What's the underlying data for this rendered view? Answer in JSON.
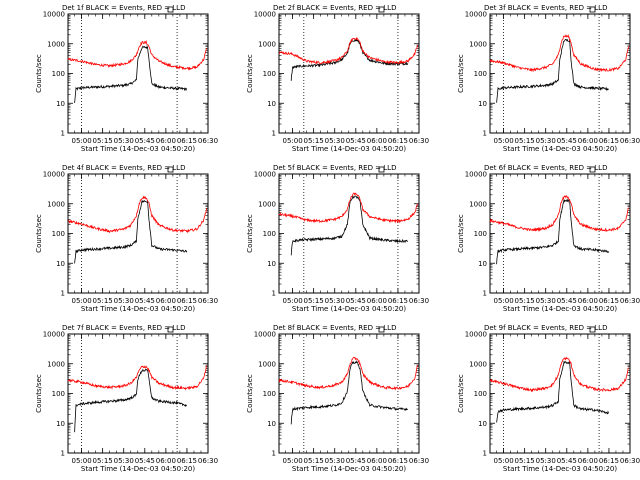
{
  "chart_data": {
    "type": "line",
    "y_scale": "log",
    "ylim": [
      1,
      10000
    ],
    "y_ticks": [
      "1",
      "10",
      "100",
      "1000",
      "10000"
    ],
    "ylabel": "Counts/sec",
    "xlabel": "Start Time (14-Dec-03 04:50:20)",
    "xlim": [
      "04:50:20",
      "06:30:00"
    ],
    "x_ticks": [
      "05:00",
      "05:15",
      "05:30",
      "05:45",
      "06:00",
      "06:15",
      "06:30"
    ],
    "colors": {
      "events": "#000000",
      "lld": "#ff0000"
    },
    "panels": [
      {
        "title": "Det 1f BLACK = Events, RED = LLD",
        "markers": [
          "05:00",
          "06:08"
        ],
        "series": [
          {
            "name": "Events",
            "x": [
              "04:55",
              "04:56",
              "05:00",
              "05:10",
              "05:20",
              "05:30",
              "05:35",
              "05:39",
              "05:40",
              "05:43",
              "05:47",
              "05:48",
              "05:50",
              "05:55",
              "06:05",
              "06:15"
            ],
            "y": [
              10,
              30,
              33,
              35,
              37,
              40,
              45,
              60,
              300,
              750,
              760,
              300,
              45,
              35,
              32,
              30
            ]
          },
          {
            "name": "LLD",
            "x": [
              "04:50:20",
              "05:00",
              "05:10",
              "05:20",
              "05:30",
              "05:35",
              "05:39",
              "05:41",
              "05:43",
              "05:46",
              "05:48",
              "05:50",
              "05:55",
              "06:05",
              "06:15",
              "06:22",
              "06:27",
              "06:29"
            ],
            "y": [
              300,
              260,
              200,
              180,
              210,
              260,
              420,
              800,
              1100,
              1100,
              800,
              420,
              260,
              170,
              150,
              160,
              300,
              700
            ]
          }
        ]
      },
      {
        "title": "Det 2f BLACK = Events, RED = LLD",
        "markers": [
          "05:08",
          "06:15"
        ],
        "series": [
          {
            "name": "Events",
            "x": [
              "04:59",
              "05:00",
              "05:05",
              "05:10",
              "05:20",
              "05:30",
              "05:35",
              "05:39",
              "05:41",
              "05:43",
              "05:46",
              "05:48",
              "05:50",
              "05:55",
              "06:05",
              "06:15",
              "06:22"
            ],
            "y": [
              60,
              160,
              175,
              180,
              190,
              230,
              290,
              480,
              1000,
              1300,
              1300,
              1000,
              480,
              280,
              220,
              210,
              220
            ]
          },
          {
            "name": "LLD",
            "x": [
              "04:50:20",
              "05:00",
              "05:10",
              "05:20",
              "05:30",
              "05:35",
              "05:39",
              "05:41",
              "05:43",
              "05:46",
              "05:48",
              "05:50",
              "05:55",
              "06:05",
              "06:15",
              "06:22",
              "06:27",
              "06:29"
            ],
            "y": [
              520,
              450,
              260,
              230,
              270,
              340,
              560,
              1100,
              1500,
              1500,
              1100,
              560,
              340,
              250,
              230,
              260,
              450,
              900
            ]
          }
        ]
      },
      {
        "title": "Det 3f BLACK = Events, RED = LLD",
        "markers": [
          "05:00",
          "06:08"
        ],
        "series": [
          {
            "name": "Events",
            "x": [
              "04:55",
              "04:56",
              "05:00",
              "05:10",
              "05:20",
              "05:30",
              "05:35",
              "05:39",
              "05:40",
              "05:43",
              "05:47",
              "05:48",
              "05:50",
              "05:55",
              "06:05",
              "06:15"
            ],
            "y": [
              10,
              30,
              33,
              35,
              37,
              40,
              45,
              60,
              300,
              1300,
              1300,
              300,
              45,
              35,
              32,
              30
            ]
          },
          {
            "name": "LLD",
            "x": [
              "04:50:20",
              "05:00",
              "05:10",
              "05:20",
              "05:30",
              "05:35",
              "05:39",
              "05:41",
              "05:43",
              "05:46",
              "05:48",
              "05:50",
              "05:55",
              "06:05",
              "06:15",
              "06:22",
              "06:27",
              "06:29"
            ],
            "y": [
              270,
              230,
              160,
              130,
              160,
              210,
              420,
              1100,
              1800,
              1800,
              1100,
              420,
              210,
              140,
              130,
              150,
              300,
              800
            ]
          }
        ]
      },
      {
        "title": "Det 4f BLACK = Events, RED = LLD",
        "markers": [
          "05:00",
          "06:08"
        ],
        "series": [
          {
            "name": "Events",
            "x": [
              "04:55",
              "04:56",
              "05:00",
              "05:10",
              "05:20",
              "05:30",
              "05:35",
              "05:39",
              "05:40",
              "05:43",
              "05:47",
              "05:48",
              "05:50",
              "05:55",
              "06:05",
              "06:15"
            ],
            "y": [
              10,
              25,
              28,
              30,
              32,
              35,
              40,
              55,
              300,
              1200,
              1200,
              300,
              40,
              30,
              28,
              25
            ]
          },
          {
            "name": "LLD",
            "x": [
              "04:50:20",
              "05:00",
              "05:10",
              "05:20",
              "05:30",
              "05:35",
              "05:39",
              "05:41",
              "05:43",
              "05:46",
              "05:48",
              "05:50",
              "05:55",
              "06:05",
              "06:15",
              "06:22",
              "06:27",
              "06:29"
            ],
            "y": [
              260,
              210,
              150,
              120,
              140,
              190,
              400,
              1000,
              1600,
              1600,
              1000,
              400,
              190,
              130,
              120,
              140,
              280,
              700
            ]
          }
        ]
      },
      {
        "title": "Det 5f BLACK = Events, RED = LLD",
        "markers": [
          "05:08",
          "06:15"
        ],
        "series": [
          {
            "name": "Events",
            "x": [
              "04:59",
              "05:00",
              "05:05",
              "05:10",
              "05:20",
              "05:30",
              "05:35",
              "05:39",
              "05:41",
              "05:43",
              "05:46",
              "05:48",
              "05:50",
              "05:55",
              "06:05",
              "06:15",
              "06:22"
            ],
            "y": [
              20,
              55,
              60,
              62,
              65,
              70,
              80,
              200,
              1200,
              1700,
              1700,
              1200,
              200,
              70,
              60,
              55,
              55
            ]
          },
          {
            "name": "LLD",
            "x": [
              "04:50:20",
              "05:00",
              "05:10",
              "05:20",
              "05:30",
              "05:35",
              "05:39",
              "05:41",
              "05:43",
              "05:46",
              "05:48",
              "05:50",
              "05:55",
              "06:05",
              "06:15",
              "06:22",
              "06:27",
              "06:29"
            ],
            "y": [
              450,
              380,
              280,
              260,
              300,
              370,
              650,
              1400,
              2100,
              2100,
              1400,
              650,
              370,
              280,
              260,
              300,
              500,
              1000
            ]
          }
        ]
      },
      {
        "title": "Det 6f BLACK = Events, RED = LLD",
        "markers": [
          "05:00",
          "06:08"
        ],
        "series": [
          {
            "name": "Events",
            "x": [
              "04:55",
              "04:56",
              "05:00",
              "05:10",
              "05:20",
              "05:30",
              "05:35",
              "05:39",
              "05:40",
              "05:43",
              "05:47",
              "05:48",
              "05:50",
              "05:55",
              "06:05",
              "06:15"
            ],
            "y": [
              10,
              25,
              28,
              30,
              32,
              35,
              40,
              55,
              300,
              1300,
              1300,
              300,
              40,
              30,
              28,
              25
            ]
          },
          {
            "name": "LLD",
            "x": [
              "04:50:20",
              "05:00",
              "05:10",
              "05:20",
              "05:30",
              "05:35",
              "05:39",
              "05:41",
              "05:43",
              "05:46",
              "05:48",
              "05:50",
              "05:55",
              "06:05",
              "06:15",
              "06:22",
              "06:27",
              "06:29"
            ],
            "y": [
              270,
              220,
              160,
              130,
              150,
              200,
              420,
              1100,
              1700,
              1700,
              1100,
              420,
              200,
              140,
              130,
              150,
              300,
              750
            ]
          }
        ]
      },
      {
        "title": "Det 7f BLACK = Events, RED = LLD",
        "markers": [
          "05:00",
          "06:08"
        ],
        "series": [
          {
            "name": "Events",
            "x": [
              "04:55",
              "04:56",
              "05:00",
              "05:10",
              "05:20",
              "05:30",
              "05:35",
              "05:39",
              "05:40",
              "05:43",
              "05:47",
              "05:48",
              "05:50",
              "05:55",
              "06:05",
              "06:15"
            ],
            "y": [
              5,
              40,
              45,
              50,
              55,
              60,
              70,
              90,
              300,
              600,
              600,
              300,
              70,
              55,
              50,
              40
            ]
          },
          {
            "name": "LLD",
            "x": [
              "04:50:20",
              "05:00",
              "05:10",
              "05:20",
              "05:30",
              "05:35",
              "05:39",
              "05:41",
              "05:43",
              "05:46",
              "05:48",
              "05:50",
              "05:55",
              "06:05",
              "06:15",
              "06:22",
              "06:27",
              "06:29"
            ],
            "y": [
              280,
              240,
              180,
              160,
              180,
              220,
              350,
              600,
              800,
              800,
              600,
              350,
              220,
              160,
              150,
              170,
              330,
              850
            ]
          }
        ]
      },
      {
        "title": "Det 8f BLACK = Events, RED = LLD",
        "markers": [
          "05:08",
          "06:15"
        ],
        "series": [
          {
            "name": "Events",
            "x": [
              "04:59",
              "05:00",
              "05:05",
              "05:10",
              "05:20",
              "05:30",
              "05:35",
              "05:39",
              "05:41",
              "05:43",
              "05:46",
              "05:48",
              "05:50",
              "05:55",
              "06:05",
              "06:15",
              "06:22"
            ],
            "y": [
              10,
              30,
              32,
              34,
              36,
              40,
              48,
              120,
              700,
              1100,
              1100,
              700,
              120,
              40,
              34,
              30,
              30
            ]
          },
          {
            "name": "LLD",
            "x": [
              "04:50:20",
              "05:00",
              "05:10",
              "05:20",
              "05:30",
              "05:35",
              "05:39",
              "05:41",
              "05:43",
              "05:46",
              "05:48",
              "05:50",
              "05:55",
              "06:05",
              "06:15",
              "06:22",
              "06:27",
              "06:29"
            ],
            "y": [
              280,
              240,
              180,
              160,
              190,
              240,
              450,
              1000,
              1500,
              1500,
              1000,
              450,
              240,
              160,
              150,
              170,
              330,
              900
            ]
          }
        ]
      },
      {
        "title": "Det 9f BLACK = Events, RED = LLD",
        "markers": [
          "05:00",
          "06:08"
        ],
        "series": [
          {
            "name": "Events",
            "x": [
              "04:55",
              "04:56",
              "05:00",
              "05:10",
              "05:20",
              "05:30",
              "05:35",
              "05:39",
              "05:40",
              "05:43",
              "05:47",
              "05:48",
              "05:50",
              "05:55",
              "06:05",
              "06:15"
            ],
            "y": [
              10,
              25,
              28,
              30,
              32,
              35,
              40,
              55,
              300,
              1100,
              1100,
              300,
              40,
              30,
              28,
              22
            ]
          },
          {
            "name": "LLD",
            "x": [
              "04:50:20",
              "05:00",
              "05:10",
              "05:20",
              "05:30",
              "05:35",
              "05:39",
              "05:41",
              "05:43",
              "05:46",
              "05:48",
              "05:50",
              "05:55",
              "06:05",
              "06:15",
              "06:22",
              "06:27",
              "06:29"
            ],
            "y": [
              270,
              220,
              160,
              130,
              150,
              200,
              420,
              1000,
              1500,
              1500,
              1000,
              420,
              200,
              140,
              130,
              150,
              300,
              750
            ]
          }
        ]
      }
    ]
  }
}
